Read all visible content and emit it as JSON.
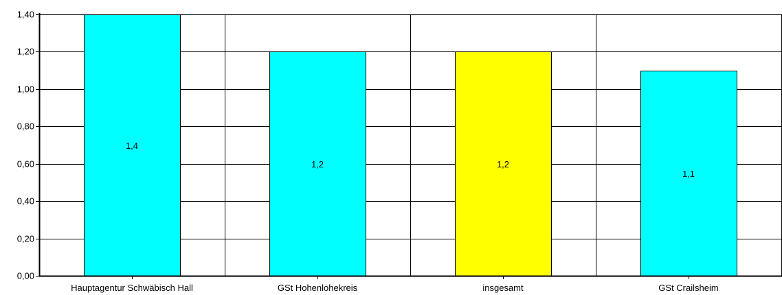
{
  "chart_data": {
    "type": "bar",
    "categories": [
      "Hauptagentur Schwäbisch Hall",
      "GSt Hohenlohekreis",
      "insgesamt",
      "GSt Crailsheim"
    ],
    "values": [
      1.4,
      1.2,
      1.2,
      1.1
    ],
    "data_labels": [
      "1,4",
      "1,2",
      "1,2",
      "1,1"
    ],
    "bar_colors": [
      "#00ffff",
      "#00ffff",
      "#ffff00",
      "#00ffff"
    ],
    "ylim": [
      0,
      1.4
    ],
    "yticks": [
      0,
      0.2,
      0.4,
      0.6,
      0.8,
      1.0,
      1.2,
      1.4
    ],
    "ytick_labels": [
      "0,00",
      "0,20",
      "0,40",
      "0,60",
      "0,80",
      "1,00",
      "1,20",
      "1,40"
    ],
    "grid": true,
    "legend": "none",
    "title": "",
    "xlabel": "",
    "ylabel": ""
  }
}
